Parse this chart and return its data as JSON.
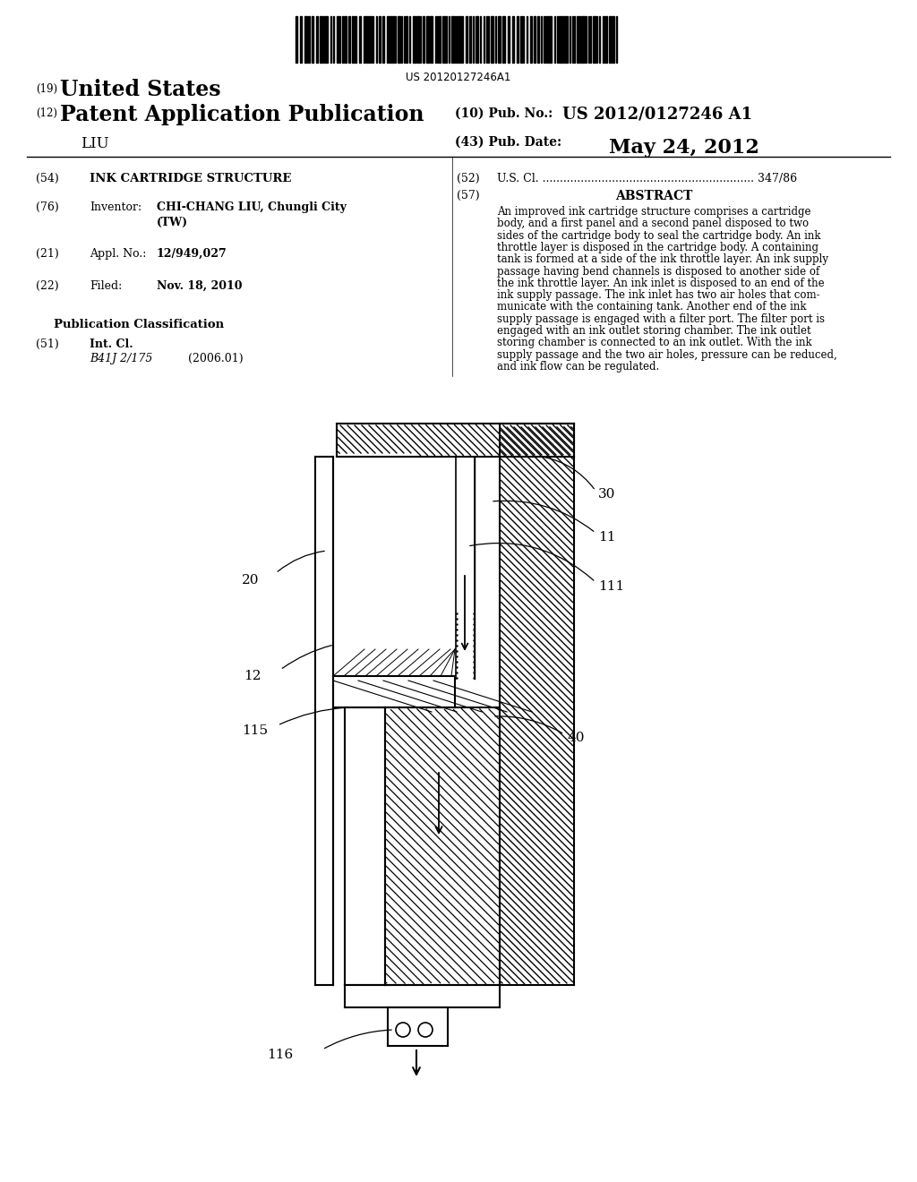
{
  "barcode_text": "US 20120127246A1",
  "header_19": "(19)",
  "header_19_text": "United States",
  "header_12": "(12)",
  "header_12_text": "Patent Application Publication",
  "header_10": "(10) Pub. No.:",
  "pub_no": "US 2012/0127246 A1",
  "header_43": "(43) Pub. Date:",
  "pub_date": "May 24, 2012",
  "inventor_name": "LIU",
  "field_54_label": "(54)",
  "field_54_text": "INK CARTRIDGE STRUCTURE",
  "field_52_label": "(52)",
  "field_52_text": "U.S. Cl. ............................................................. 347/86",
  "field_57_label": "(57)",
  "field_57_title": "ABSTRACT",
  "field_76_label": "(76)",
  "field_76_title": "Inventor:",
  "field_76_name": "CHI-CHANG LIU, Chungli City",
  "field_76_country": "(TW)",
  "field_21_label": "(21)",
  "field_21_title": "Appl. No.:",
  "field_21_value": "12/949,027",
  "field_22_label": "(22)",
  "field_22_title": "Filed:",
  "field_22_value": "Nov. 18, 2010",
  "pub_class_title": "Publication Classification",
  "field_51_label": "(51)",
  "field_51_title": "Int. Cl.",
  "field_51_class": "B41J 2/175",
  "field_51_year": "(2006.01)",
  "abstract_lines": [
    "An improved ink cartridge structure comprises a cartridge",
    "body, and a first panel and a second panel disposed to two",
    "sides of the cartridge body to seal the cartridge body. An ink",
    "throttle layer is disposed in the cartridge body. A containing",
    "tank is formed at a side of the ink throttle layer. An ink supply",
    "passage having bend channels is disposed to another side of",
    "the ink throttle layer. An ink inlet is disposed to an end of the",
    "ink supply passage. The ink inlet has two air holes that com-",
    "municate with the containing tank. Another end of the ink",
    "supply passage is engaged with a filter port. The filter port is",
    "engaged with an ink outlet storing chamber. The ink outlet",
    "storing chamber is connected to an ink outlet. With the ink",
    "supply passage and the two air holes, pressure can be reduced,",
    "and ink flow can be regulated."
  ],
  "bg_color": "#ffffff",
  "text_color": "#000000"
}
